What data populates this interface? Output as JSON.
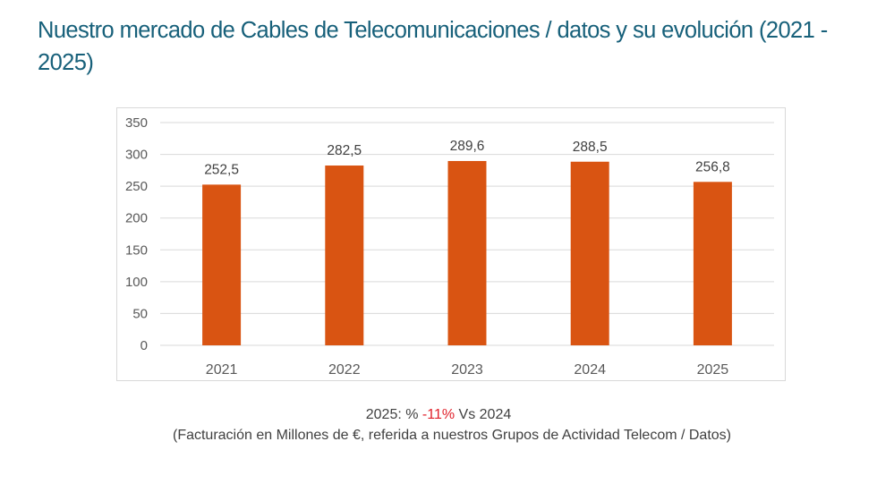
{
  "title": "Nuestro mercado de Cables de Telecomunicaciones / datos y su evolución (2021 - 2025)",
  "colors": {
    "title": "#17607a",
    "bar": "#d95412",
    "negative": "#e0202a"
  },
  "chart_data": {
    "type": "bar",
    "categories": [
      "2021",
      "2022",
      "2023",
      "2024",
      "2025"
    ],
    "values": [
      252.5,
      282.5,
      289.6,
      288.5,
      256.8
    ],
    "value_labels": [
      "252,5",
      "282,5",
      "289,6",
      "288,5",
      "256,8"
    ],
    "ylim": [
      0,
      350
    ],
    "yticks": [
      0,
      50,
      100,
      150,
      200,
      250,
      300,
      350
    ],
    "grid": true,
    "xlabel": "",
    "ylabel": ""
  },
  "caption": {
    "prefix": "2025: % ",
    "change": "-11%",
    "suffix": " Vs 2024",
    "note": "(Facturación en Millones de €, referida a nuestros Grupos de Actividad Telecom / Datos)"
  }
}
